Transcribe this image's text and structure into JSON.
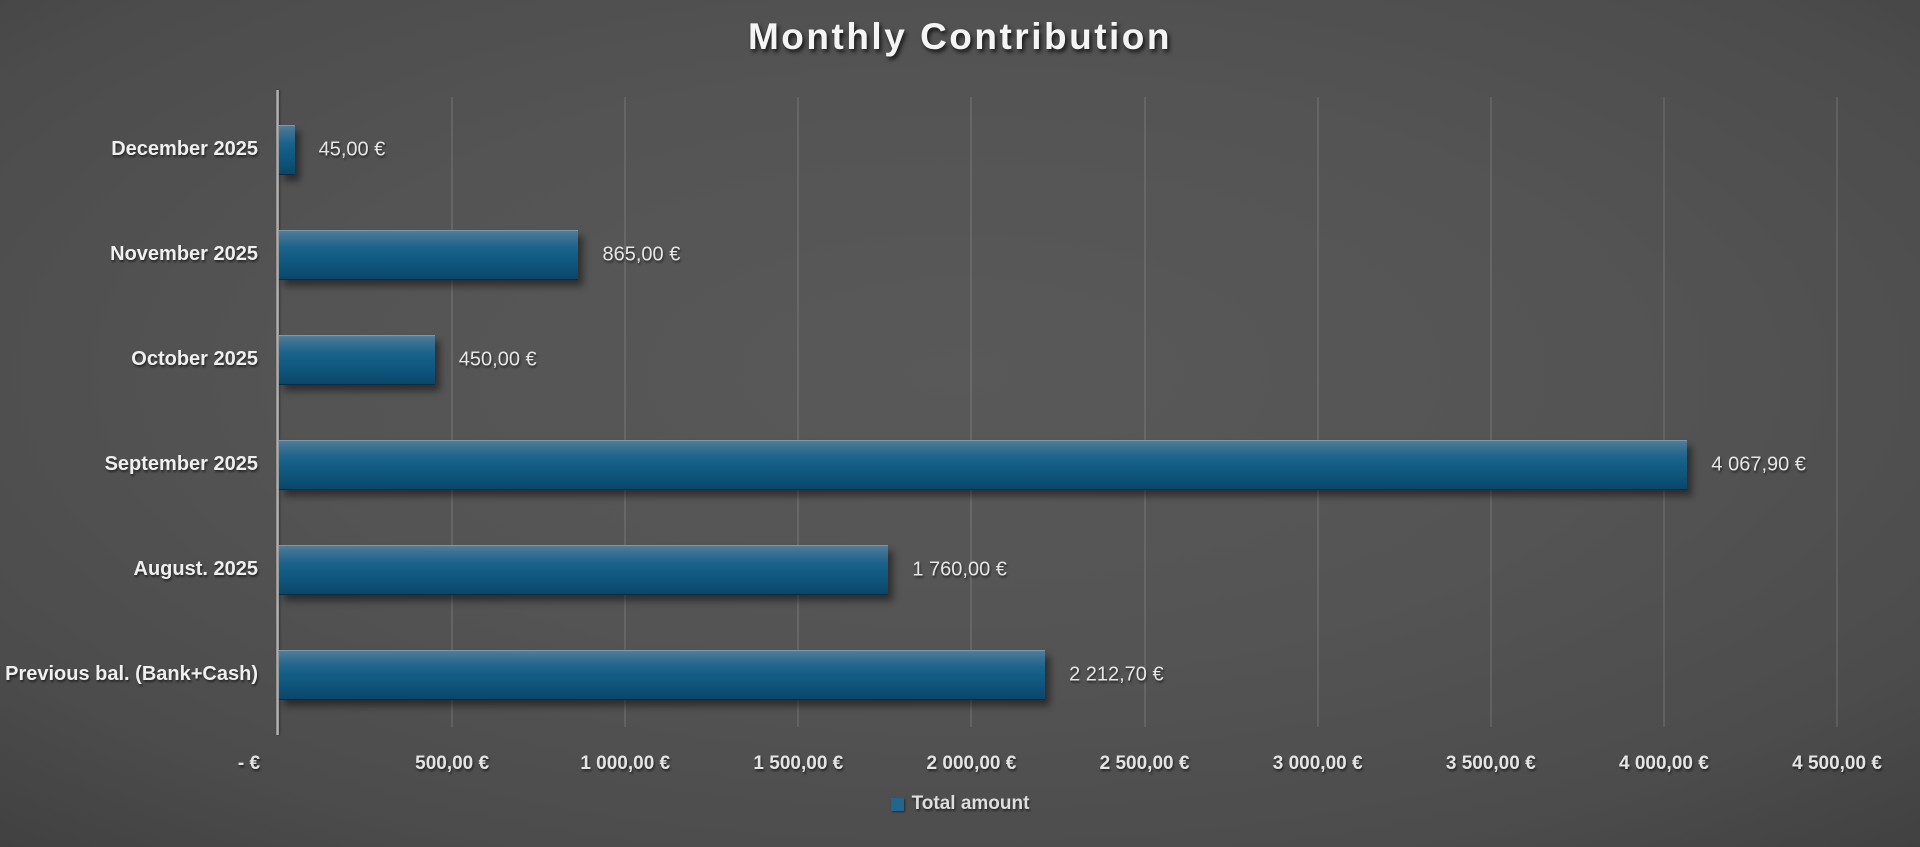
{
  "chart_data": {
    "type": "bar",
    "orientation": "horizontal",
    "title": "Monthly Contribution",
    "categories": [
      "December 2025",
      "November 2025",
      "October 2025",
      "September 2025",
      "August. 2025",
      "Previous bal. (Bank+Cash)"
    ],
    "series": [
      {
        "name": "Total amount",
        "values": [
          45.0,
          865.0,
          450.0,
          4067.9,
          1760.0,
          2212.7
        ]
      }
    ],
    "value_labels": [
      "45,00 €",
      "865,00 €",
      "450,00 €",
      "4 067,90 €",
      "1 760,00 €",
      "2 212,70 €"
    ],
    "x_tick_labels": [
      "-  €",
      "500,00 €",
      "1 000,00 €",
      "1 500,00 €",
      "2 000,00 €",
      "2 500,00 €",
      "3 000,00 €",
      "3 500,00 €",
      "4 000,00 €",
      "4 500,00 €"
    ],
    "xlim": [
      0,
      4500
    ],
    "x_tick_step": 500,
    "grid": true,
    "legend": {
      "position": "bottom",
      "entries": [
        "Total amount"
      ]
    },
    "colors": {
      "bar_top": "#557f9a",
      "bar_mid": "#135d85",
      "bar_bottom": "#0a4566",
      "legend_marker": "#20668e",
      "background_center": "#595959",
      "background_edge": "#191919",
      "gridline": "rgba(255,255,255,0.10)",
      "axis_line": "#a8a8a8",
      "title_text": "#f4f4f4",
      "label_text": "#e6e6e6"
    }
  }
}
